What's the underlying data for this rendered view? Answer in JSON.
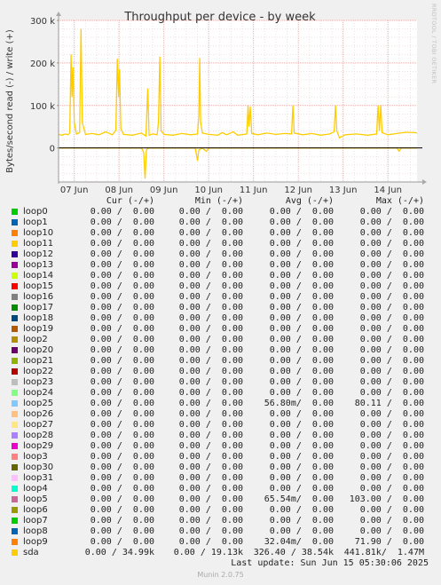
{
  "chart_data": {
    "type": "line",
    "title": "Throughput per device - by week",
    "ylabel": "Bytes/second read (-) / write (+)",
    "xlabel": "",
    "ylim": [
      -80000,
      300000
    ],
    "yticks": [
      {
        "value": 300000,
        "label": "300 k"
      },
      {
        "value": 200000,
        "label": "200 k"
      },
      {
        "value": 100000,
        "label": "100 k"
      },
      {
        "value": 0,
        "label": "0"
      }
    ],
    "xlim": [
      0.65,
      8.65
    ],
    "xticks": [
      {
        "value": 1,
        "label": "07 Jun"
      },
      {
        "value": 2,
        "label": "08 Jun"
      },
      {
        "value": 3,
        "label": "09 Jun"
      },
      {
        "value": 4,
        "label": "10 Jun"
      },
      {
        "value": 5,
        "label": "11 Jun"
      },
      {
        "value": 6,
        "label": "12 Jun"
      },
      {
        "value": 7,
        "label": "13 Jun"
      },
      {
        "value": 8,
        "label": "14 Jun"
      }
    ],
    "grid": true,
    "series": [
      {
        "name": "sda",
        "color": "#ffcc00",
        "write": [
          [
            0.65,
            32000
          ],
          [
            0.72,
            30000
          ],
          [
            0.8,
            33000
          ],
          [
            0.86,
            31000
          ],
          [
            0.9,
            35000
          ],
          [
            0.93,
            220000
          ],
          [
            0.95,
            120000
          ],
          [
            0.97,
            190000
          ],
          [
            1.0,
            60000
          ],
          [
            1.05,
            33000
          ],
          [
            1.12,
            36000
          ],
          [
            1.15,
            280000
          ],
          [
            1.18,
            60000
          ],
          [
            1.25,
            32000
          ],
          [
            1.4,
            34000
          ],
          [
            1.55,
            31000
          ],
          [
            1.7,
            38000
          ],
          [
            1.85,
            31000
          ],
          [
            1.93,
            42000
          ],
          [
            1.96,
            210000
          ],
          [
            1.99,
            120000
          ],
          [
            2.01,
            185000
          ],
          [
            2.04,
            45000
          ],
          [
            2.1,
            32000
          ],
          [
            2.3,
            30000
          ],
          [
            2.5,
            35000
          ],
          [
            2.6,
            28000
          ],
          [
            2.64,
            140000
          ],
          [
            2.67,
            30000
          ],
          [
            2.75,
            33000
          ],
          [
            2.85,
            31000
          ],
          [
            2.88,
            60000
          ],
          [
            2.91,
            215000
          ],
          [
            2.94,
            40000
          ],
          [
            3.0,
            32000
          ],
          [
            3.2,
            30000
          ],
          [
            3.4,
            34000
          ],
          [
            3.6,
            31000
          ],
          [
            3.75,
            33000
          ],
          [
            3.78,
            75000
          ],
          [
            3.8,
            212000
          ],
          [
            3.82,
            60000
          ],
          [
            3.86,
            35000
          ],
          [
            4.0,
            32000
          ],
          [
            4.2,
            30000
          ],
          [
            4.3,
            36000
          ],
          [
            4.4,
            31000
          ],
          [
            4.55,
            38000
          ],
          [
            4.65,
            30000
          ],
          [
            4.85,
            33000
          ],
          [
            4.88,
            100000
          ],
          [
            4.9,
            50000
          ],
          [
            4.93,
            97000
          ],
          [
            4.96,
            34000
          ],
          [
            5.1,
            31000
          ],
          [
            5.3,
            35000
          ],
          [
            5.5,
            32000
          ],
          [
            5.7,
            34000
          ],
          [
            5.85,
            33000
          ],
          [
            5.88,
            100000
          ],
          [
            5.91,
            35000
          ],
          [
            6.1,
            31000
          ],
          [
            6.3,
            34000
          ],
          [
            6.5,
            30000
          ],
          [
            6.7,
            33000
          ],
          [
            6.8,
            38000
          ],
          [
            6.83,
            100000
          ],
          [
            6.86,
            40000
          ],
          [
            6.92,
            24000
          ],
          [
            7.05,
            31000
          ],
          [
            7.3,
            33000
          ],
          [
            7.55,
            30000
          ],
          [
            7.75,
            33000
          ],
          [
            7.78,
            100000
          ],
          [
            7.81,
            40000
          ],
          [
            7.84,
            100000
          ],
          [
            7.87,
            36000
          ],
          [
            8.0,
            31000
          ],
          [
            8.2,
            34000
          ],
          [
            8.4,
            37000
          ],
          [
            8.6,
            36000
          ],
          [
            8.65,
            35000
          ]
        ],
        "read": [
          [
            0.65,
            0
          ],
          [
            2.5,
            0
          ],
          [
            2.55,
            -10000
          ],
          [
            2.58,
            -72000
          ],
          [
            2.61,
            -5000
          ],
          [
            2.65,
            0
          ],
          [
            3.7,
            0
          ],
          [
            3.75,
            -30000
          ],
          [
            3.78,
            -5000
          ],
          [
            3.85,
            0
          ],
          [
            3.95,
            -8000
          ],
          [
            4.0,
            0
          ],
          [
            8.2,
            0
          ],
          [
            8.25,
            -8000
          ],
          [
            8.3,
            0
          ],
          [
            8.65,
            0
          ]
        ]
      }
    ]
  },
  "legend": {
    "headers": {
      "cur": "Cur (-/+)",
      "min": "Min (-/+)",
      "avg": "Avg (-/+)",
      "max": "Max (-/+)"
    },
    "rows": [
      {
        "name": "loop0",
        "color": "#00cc00",
        "cur": "0.00 /  0.00",
        "min": "0.00 /  0.00",
        "avg": "0.00 /  0.00",
        "max": "0.00 /  0.00"
      },
      {
        "name": "loop1",
        "color": "#0066b3",
        "cur": "0.00 /  0.00",
        "min": "0.00 /  0.00",
        "avg": "0.00 /  0.00",
        "max": "0.00 /  0.00"
      },
      {
        "name": "loop10",
        "color": "#ff8000",
        "cur": "0.00 /  0.00",
        "min": "0.00 /  0.00",
        "avg": "0.00 /  0.00",
        "max": "0.00 /  0.00"
      },
      {
        "name": "loop11",
        "color": "#ffcc00",
        "cur": "0.00 /  0.00",
        "min": "0.00 /  0.00",
        "avg": "0.00 /  0.00",
        "max": "0.00 /  0.00"
      },
      {
        "name": "loop12",
        "color": "#330099",
        "cur": "0.00 /  0.00",
        "min": "0.00 /  0.00",
        "avg": "0.00 /  0.00",
        "max": "0.00 /  0.00"
      },
      {
        "name": "loop13",
        "color": "#990099",
        "cur": "0.00 /  0.00",
        "min": "0.00 /  0.00",
        "avg": "0.00 /  0.00",
        "max": "0.00 /  0.00"
      },
      {
        "name": "loop14",
        "color": "#ccff00",
        "cur": "0.00 /  0.00",
        "min": "0.00 /  0.00",
        "avg": "0.00 /  0.00",
        "max": "0.00 /  0.00"
      },
      {
        "name": "loop15",
        "color": "#ff0000",
        "cur": "0.00 /  0.00",
        "min": "0.00 /  0.00",
        "avg": "0.00 /  0.00",
        "max": "0.00 /  0.00"
      },
      {
        "name": "loop16",
        "color": "#808080",
        "cur": "0.00 /  0.00",
        "min": "0.00 /  0.00",
        "avg": "0.00 /  0.00",
        "max": "0.00 /  0.00"
      },
      {
        "name": "loop17",
        "color": "#008f00",
        "cur": "0.00 /  0.00",
        "min": "0.00 /  0.00",
        "avg": "0.00 /  0.00",
        "max": "0.00 /  0.00"
      },
      {
        "name": "loop18",
        "color": "#00487d",
        "cur": "0.00 /  0.00",
        "min": "0.00 /  0.00",
        "avg": "0.00 /  0.00",
        "max": "0.00 /  0.00"
      },
      {
        "name": "loop19",
        "color": "#b35a00",
        "cur": "0.00 /  0.00",
        "min": "0.00 /  0.00",
        "avg": "0.00 /  0.00",
        "max": "0.00 /  0.00"
      },
      {
        "name": "loop2",
        "color": "#b38f00",
        "cur": "0.00 /  0.00",
        "min": "0.00 /  0.00",
        "avg": "0.00 /  0.00",
        "max": "0.00 /  0.00"
      },
      {
        "name": "loop20",
        "color": "#6b006b",
        "cur": "0.00 /  0.00",
        "min": "0.00 /  0.00",
        "avg": "0.00 /  0.00",
        "max": "0.00 /  0.00"
      },
      {
        "name": "loop21",
        "color": "#8fb300",
        "cur": "0.00 /  0.00",
        "min": "0.00 /  0.00",
        "avg": "0.00 /  0.00",
        "max": "0.00 /  0.00"
      },
      {
        "name": "loop22",
        "color": "#b30000",
        "cur": "0.00 /  0.00",
        "min": "0.00 /  0.00",
        "avg": "0.00 /  0.00",
        "max": "0.00 /  0.00"
      },
      {
        "name": "loop23",
        "color": "#bebebe",
        "cur": "0.00 /  0.00",
        "min": "0.00 /  0.00",
        "avg": "0.00 /  0.00",
        "max": "0.00 /  0.00"
      },
      {
        "name": "loop24",
        "color": "#80ff80",
        "cur": "0.00 /  0.00",
        "min": "0.00 /  0.00",
        "avg": "0.00 /  0.00",
        "max": "0.00 /  0.00"
      },
      {
        "name": "loop25",
        "color": "#80c9ff",
        "cur": "0.00 /  0.00",
        "min": "0.00 /  0.00",
        "avg": "56.80m/  0.00",
        "max": "80.11 /  0.00"
      },
      {
        "name": "loop26",
        "color": "#ffc080",
        "cur": "0.00 /  0.00",
        "min": "0.00 /  0.00",
        "avg": "0.00 /  0.00",
        "max": "0.00 /  0.00"
      },
      {
        "name": "loop27",
        "color": "#ffe680",
        "cur": "0.00 /  0.00",
        "min": "0.00 /  0.00",
        "avg": "0.00 /  0.00",
        "max": "0.00 /  0.00"
      },
      {
        "name": "loop28",
        "color": "#aa80ff",
        "cur": "0.00 /  0.00",
        "min": "0.00 /  0.00",
        "avg": "0.00 /  0.00",
        "max": "0.00 /  0.00"
      },
      {
        "name": "loop29",
        "color": "#ee00cc",
        "cur": "0.00 /  0.00",
        "min": "0.00 /  0.00",
        "avg": "0.00 /  0.00",
        "max": "0.00 /  0.00"
      },
      {
        "name": "loop3",
        "color": "#ff8080",
        "cur": "0.00 /  0.00",
        "min": "0.00 /  0.00",
        "avg": "0.00 /  0.00",
        "max": "0.00 /  0.00"
      },
      {
        "name": "loop30",
        "color": "#666600",
        "cur": "0.00 /  0.00",
        "min": "0.00 /  0.00",
        "avg": "0.00 /  0.00",
        "max": "0.00 /  0.00"
      },
      {
        "name": "loop31",
        "color": "#ffbfff",
        "cur": "0.00 /  0.00",
        "min": "0.00 /  0.00",
        "avg": "0.00 /  0.00",
        "max": "0.00 /  0.00"
      },
      {
        "name": "loop4",
        "color": "#00ffcc",
        "cur": "0.00 /  0.00",
        "min": "0.00 /  0.00",
        "avg": "0.00 /  0.00",
        "max": "0.00 /  0.00"
      },
      {
        "name": "loop5",
        "color": "#cc6699",
        "cur": "0.00 /  0.00",
        "min": "0.00 /  0.00",
        "avg": "65.54m/  0.00",
        "max": "103.00 /  0.00"
      },
      {
        "name": "loop6",
        "color": "#999900",
        "cur": "0.00 /  0.00",
        "min": "0.00 /  0.00",
        "avg": "0.00 /  0.00",
        "max": "0.00 /  0.00"
      },
      {
        "name": "loop7",
        "color": "#00cc00",
        "cur": "0.00 /  0.00",
        "min": "0.00 /  0.00",
        "avg": "0.00 /  0.00",
        "max": "0.00 /  0.00"
      },
      {
        "name": "loop8",
        "color": "#0066b3",
        "cur": "0.00 /  0.00",
        "min": "0.00 /  0.00",
        "avg": "0.00 /  0.00",
        "max": "0.00 /  0.00"
      },
      {
        "name": "loop9",
        "color": "#ff8000",
        "cur": "0.00 /  0.00",
        "min": "0.00 /  0.00",
        "avg": "32.04m/  0.00",
        "max": "71.90 /  0.00"
      },
      {
        "name": "sda",
        "color": "#ffcc00",
        "cur": "0.00 / 34.99k",
        "min": "0.00 / 19.13k",
        "avg": "326.40 / 38.54k",
        "max": "441.81k/  1.47M"
      }
    ]
  },
  "footer": {
    "last_update": "Last update: Sun Jun 15 05:30:06 2025",
    "munin_version": "Munin 2.0.75"
  },
  "sidebar": {
    "rrdtool_credit": "RRDTOOL / TOBI OETIKER"
  }
}
